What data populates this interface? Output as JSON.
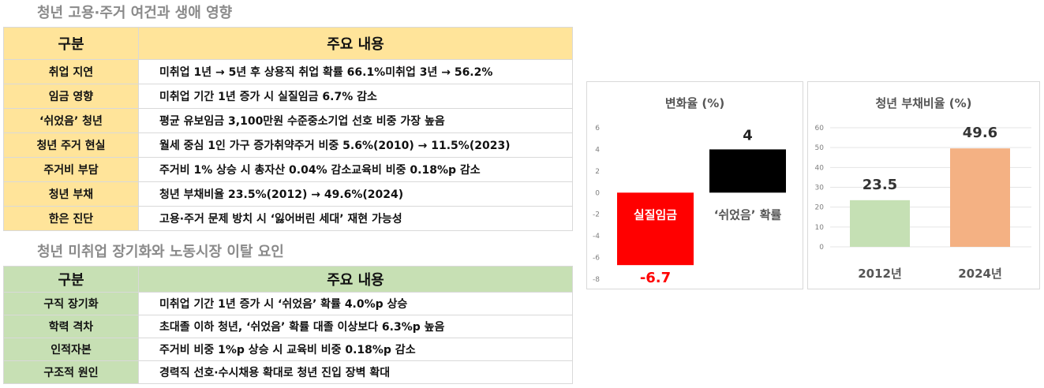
{
  "section1": {
    "title": "청년 고용·주거 여건과 생애 영향",
    "header": {
      "col1": "구분",
      "col2": "주요 내용"
    },
    "rows": [
      {
        "label": "취업 지연",
        "content": "미취업 1년 → 5년 후 상용직 취업 확률 66.1%미취업 3년 → 56.2%"
      },
      {
        "label": "임금 영향",
        "content": "미취업 기간 1년 증가 시 실질임금 6.7% 감소"
      },
      {
        "label": "‘쉬었음’ 청년",
        "content": "평균 유보임금 3,100만원 수준중소기업 선호 비중 가장 높음"
      },
      {
        "label": "청년 주거 현실",
        "content": "월세 중심 1인 가구 증가취약주거 비중 5.6%(2010) → 11.5%(2023)"
      },
      {
        "label": "주거비 부담",
        "content": "주거비 1% 상승 시 총자산 0.04% 감소교육비 비중 0.18%p 감소"
      },
      {
        "label": "청년 부채",
        "content": "청년 부채비율 23.5%(2012) → 49.6%(2024)"
      },
      {
        "label": "한은 진단",
        "content": "고용·주거 문제 방치 시 ‘잃어버린 세대’ 재현 가능성"
      }
    ]
  },
  "section2": {
    "title": "청년 미취업 장기화와 노동시장 이탈 요인",
    "header": {
      "col1": "구분",
      "col2": "주요 내용"
    },
    "rows": [
      {
        "label": "구직 장기화",
        "content": "미취업 기간 1년 증가 시 ‘쉬었음’ 확률 4.0%p 상승"
      },
      {
        "label": "학력 격차",
        "content": "초대졸 이하 청년, ‘쉬었음’ 확률 대졸 이상보다 6.3%p 높음"
      },
      {
        "label": "인적자본",
        "content": "주거비 비중 1%p 상승 시 교육비 비중 0.18%p 감소"
      },
      {
        "label": "구조적 원인",
        "content": "경력직 선호·수시채용 확대로 청년 진입 장벽 확대"
      }
    ]
  },
  "colors": {
    "yellow_header": "#ffe49a",
    "green_header": "#c7e0b4",
    "negative_bar": "#ff0000",
    "positive_bar": "#000000",
    "bar_2012": "#c5e0b4",
    "bar_2024": "#f4b183"
  },
  "chart_data": [
    {
      "type": "bar",
      "title": "변화율 (%)",
      "categories": [
        "실질임금",
        "‘쉬었음’ 확률"
      ],
      "values": [
        -6.7,
        4
      ],
      "data_labels": [
        "-6.7",
        "4"
      ],
      "ylim": [
        -8,
        6
      ],
      "yticks": [
        6,
        4,
        2,
        0,
        -2,
        -4,
        -6,
        -8
      ],
      "grid": false,
      "legend": "none",
      "colors": [
        "#ff0000",
        "#000000"
      ]
    },
    {
      "type": "bar",
      "title": "청년 부채비율 (%)",
      "categories": [
        "2012년",
        "2024년"
      ],
      "values": [
        23.5,
        49.6
      ],
      "data_labels": [
        "23.5",
        "49.6"
      ],
      "ylim": [
        0,
        60
      ],
      "yticks": [
        60,
        50,
        40,
        30,
        20,
        10,
        0
      ],
      "grid": true,
      "legend": "none",
      "colors": [
        "#c5e0b4",
        "#f4b183"
      ]
    }
  ]
}
